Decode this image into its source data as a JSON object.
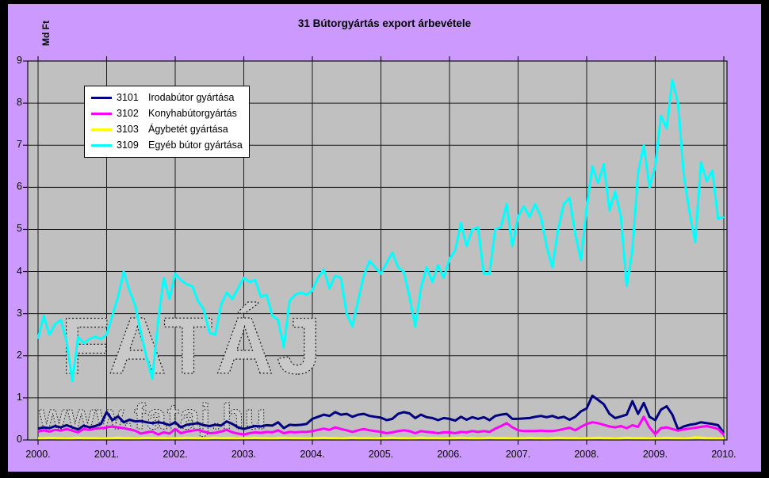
{
  "title": "31 Bútorgyártás export árbevétele",
  "watermark": {
    "line1": "FATÁJ",
    "line2": "www.fataj.hu"
  },
  "colors": {
    "frame": "#000000",
    "background": "#CC99FF",
    "plot_background": "#C0C0C0",
    "grid": "#1A1A1A",
    "text": "#000000",
    "legend_background": "#FFFFFF",
    "watermark_fill": "#C9C9C9",
    "watermark_stroke": "#1A1A1A"
  },
  "chart_data": {
    "type": "line",
    "title": "31 Bútorgyártás export árbevétele",
    "xlabel": "",
    "ylabel": "Md Ft",
    "ylim": [
      0,
      9
    ],
    "y_ticks": [
      "0",
      "1",
      "2",
      "3",
      "4",
      "5",
      "6",
      "7",
      "8",
      "9"
    ],
    "x_ticks": [
      "2000.",
      "2001.",
      "2002.",
      "2003.",
      "2004.",
      "2005.",
      "2006.",
      "2007.",
      "2008.",
      "2009.",
      "2010."
    ],
    "x_unit": "month",
    "x_range": "Jan 2000 - Jan 2010",
    "grid": true,
    "legend_position": "top-left",
    "series": [
      {
        "code": "3101",
        "name": "Irodabútor gyártása",
        "color": "#000080",
        "values": [
          0.27,
          0.3,
          0.28,
          0.33,
          0.3,
          0.35,
          0.3,
          0.25,
          0.34,
          0.3,
          0.33,
          0.38,
          0.66,
          0.47,
          0.56,
          0.42,
          0.48,
          0.44,
          0.45,
          0.42,
          0.4,
          0.42,
          0.4,
          0.35,
          0.42,
          0.3,
          0.36,
          0.38,
          0.4,
          0.35,
          0.33,
          0.36,
          0.34,
          0.44,
          0.38,
          0.3,
          0.26,
          0.3,
          0.33,
          0.32,
          0.35,
          0.34,
          0.42,
          0.28,
          0.36,
          0.35,
          0.36,
          0.38,
          0.5,
          0.55,
          0.6,
          0.57,
          0.66,
          0.6,
          0.62,
          0.55,
          0.6,
          0.62,
          0.57,
          0.55,
          0.53,
          0.47,
          0.5,
          0.62,
          0.66,
          0.63,
          0.52,
          0.6,
          0.54,
          0.52,
          0.47,
          0.52,
          0.5,
          0.46,
          0.55,
          0.48,
          0.54,
          0.5,
          0.54,
          0.47,
          0.57,
          0.6,
          0.62,
          0.5,
          0.5,
          0.51,
          0.52,
          0.55,
          0.57,
          0.54,
          0.57,
          0.52,
          0.55,
          0.48,
          0.55,
          0.68,
          0.75,
          1.05,
          0.95,
          0.85,
          0.62,
          0.52,
          0.56,
          0.6,
          0.92,
          0.62,
          0.88,
          0.55,
          0.47,
          0.72,
          0.8,
          0.6,
          0.25,
          0.32,
          0.36,
          0.38,
          0.42,
          0.4,
          0.38,
          0.35,
          0.17
        ]
      },
      {
        "code": "3102",
        "name": "Konyhabútorgyártás",
        "color": "#FF00FF",
        "values": [
          0.2,
          0.23,
          0.2,
          0.24,
          0.22,
          0.26,
          0.22,
          0.18,
          0.26,
          0.24,
          0.27,
          0.28,
          0.3,
          0.32,
          0.3,
          0.28,
          0.25,
          0.22,
          0.15,
          0.18,
          0.2,
          0.13,
          0.18,
          0.15,
          0.26,
          0.16,
          0.2,
          0.22,
          0.24,
          0.2,
          0.16,
          0.17,
          0.2,
          0.24,
          0.18,
          0.15,
          0.13,
          0.16,
          0.18,
          0.17,
          0.19,
          0.18,
          0.23,
          0.16,
          0.19,
          0.18,
          0.19,
          0.19,
          0.21,
          0.24,
          0.27,
          0.24,
          0.3,
          0.26,
          0.23,
          0.19,
          0.23,
          0.26,
          0.23,
          0.21,
          0.19,
          0.16,
          0.18,
          0.21,
          0.23,
          0.21,
          0.16,
          0.21,
          0.19,
          0.18,
          0.16,
          0.18,
          0.18,
          0.16,
          0.19,
          0.18,
          0.21,
          0.19,
          0.21,
          0.19,
          0.27,
          0.33,
          0.4,
          0.3,
          0.23,
          0.21,
          0.21,
          0.21,
          0.22,
          0.21,
          0.21,
          0.23,
          0.26,
          0.29,
          0.23,
          0.31,
          0.38,
          0.42,
          0.4,
          0.36,
          0.32,
          0.3,
          0.33,
          0.28,
          0.35,
          0.31,
          0.55,
          0.3,
          0.14,
          0.28,
          0.3,
          0.26,
          0.22,
          0.25,
          0.27,
          0.29,
          0.31,
          0.33,
          0.3,
          0.26,
          0.12
        ]
      },
      {
        "code": "3103",
        "name": "Ágybetét gyártása",
        "color": "#FFFF00",
        "values": [
          0.04,
          0.04,
          0.05,
          0.04,
          0.04,
          0.03,
          0.04,
          0.05,
          0.04,
          0.04,
          0.04,
          0.03,
          0.04,
          0.04,
          0.05,
          0.04,
          0.04,
          0.03,
          0.04,
          0.05,
          0.04,
          0.04,
          0.04,
          0.03,
          0.04,
          0.04,
          0.05,
          0.04,
          0.04,
          0.03,
          0.04,
          0.05,
          0.04,
          0.04,
          0.04,
          0.03,
          0.04,
          0.04,
          0.05,
          0.04,
          0.04,
          0.03,
          0.04,
          0.05,
          0.04,
          0.04,
          0.04,
          0.03,
          0.04,
          0.04,
          0.05,
          0.04,
          0.04,
          0.03,
          0.04,
          0.05,
          0.04,
          0.04,
          0.04,
          0.03,
          0.04,
          0.04,
          0.05,
          0.04,
          0.04,
          0.03,
          0.04,
          0.05,
          0.04,
          0.04,
          0.04,
          0.03,
          0.04,
          0.04,
          0.05,
          0.04,
          0.04,
          0.03,
          0.04,
          0.05,
          0.04,
          0.04,
          0.04,
          0.03,
          0.04,
          0.04,
          0.05,
          0.04,
          0.04,
          0.03,
          0.04,
          0.05,
          0.04,
          0.04,
          0.04,
          0.03,
          0.04,
          0.04,
          0.05,
          0.04,
          0.04,
          0.03,
          0.04,
          0.05,
          0.04,
          0.04,
          0.04,
          0.03,
          0.04,
          0.04,
          0.05,
          0.04,
          0.04,
          0.03,
          0.04,
          0.06,
          0.05,
          0.04,
          0.04,
          0.03,
          0.04
        ]
      },
      {
        "code": "3109",
        "name": "Egyéb bútor gyártása",
        "color": "#00FFFF",
        "values": [
          2.4,
          2.95,
          2.5,
          2.75,
          2.85,
          2.35,
          1.4,
          2.45,
          2.3,
          2.4,
          2.45,
          2.4,
          2.5,
          2.95,
          3.4,
          4.0,
          3.55,
          3.2,
          2.55,
          1.95,
          1.45,
          2.8,
          3.85,
          3.35,
          3.95,
          3.8,
          3.7,
          3.65,
          3.3,
          3.1,
          2.55,
          2.5,
          3.2,
          3.5,
          3.35,
          3.6,
          3.85,
          3.75,
          3.8,
          3.4,
          3.45,
          2.95,
          2.85,
          2.2,
          3.3,
          3.45,
          3.5,
          3.45,
          3.55,
          3.85,
          4.05,
          3.6,
          3.9,
          3.85,
          3.0,
          2.7,
          3.3,
          3.9,
          4.25,
          4.1,
          3.95,
          4.2,
          4.45,
          4.1,
          4.0,
          3.4,
          2.7,
          3.6,
          4.1,
          3.75,
          4.15,
          3.85,
          4.3,
          4.5,
          5.15,
          4.6,
          5.0,
          5.05,
          3.95,
          3.95,
          5.0,
          5.05,
          5.6,
          4.6,
          5.3,
          5.55,
          5.3,
          5.6,
          5.3,
          4.6,
          4.1,
          5.0,
          5.6,
          5.75,
          4.9,
          4.27,
          5.5,
          6.5,
          6.1,
          6.55,
          5.45,
          5.9,
          5.3,
          3.65,
          4.5,
          6.35,
          7.0,
          6.0,
          6.5,
          7.7,
          7.4,
          8.55,
          8.0,
          6.3,
          5.4,
          4.7,
          6.6,
          6.15,
          6.4,
          5.25,
          5.3
        ]
      }
    ]
  }
}
